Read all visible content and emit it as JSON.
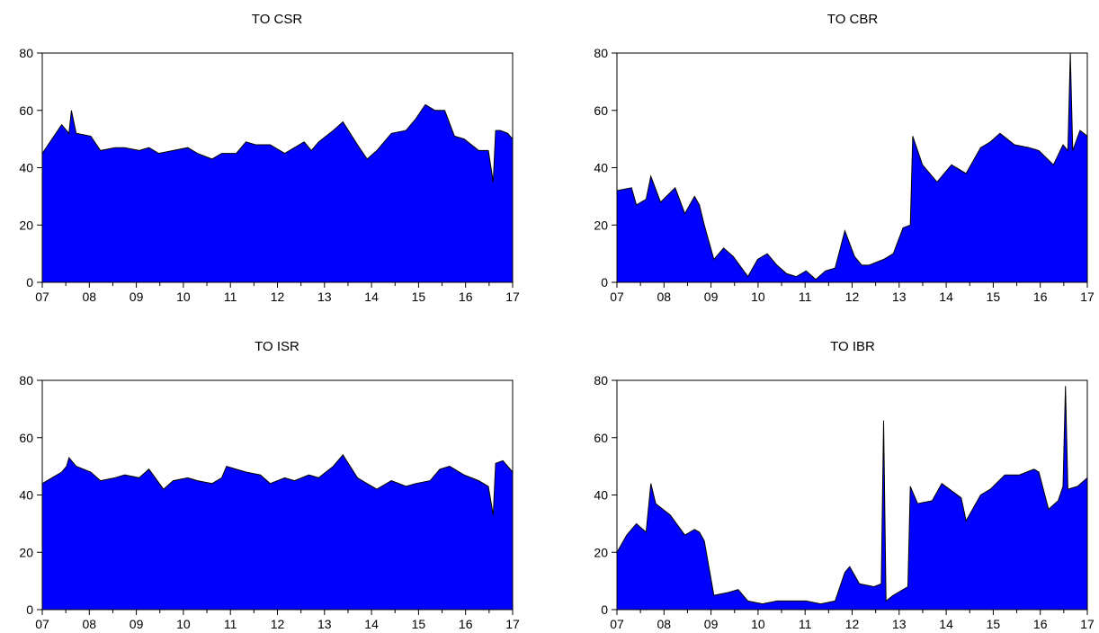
{
  "chart_data": [
    {
      "type": "area",
      "title": "TO CSR",
      "fill_color": "#0000ff",
      "line_color": "#000000",
      "ylim": [
        0,
        80
      ],
      "y_ticks": [
        "0",
        "20",
        "40",
        "60",
        "80"
      ],
      "xlim": [
        2007.3,
        2017.0
      ],
      "x_ticks": [
        2007,
        2008,
        2009,
        2010,
        2011,
        2012,
        2013,
        2014,
        2015,
        2016,
        2017
      ],
      "x_tick_labels": [
        "07",
        "08",
        "09",
        "10",
        "11",
        "12",
        "13",
        "14",
        "15",
        "16",
        "17"
      ],
      "x": [
        2007.3,
        2007.5,
        2007.7,
        2007.85,
        2007.9,
        2008.0,
        2008.3,
        2008.5,
        2008.8,
        2009.0,
        2009.3,
        2009.5,
        2009.7,
        2010.0,
        2010.3,
        2010.5,
        2010.8,
        2011.0,
        2011.3,
        2011.5,
        2011.7,
        2012.0,
        2012.3,
        2012.5,
        2012.7,
        2012.85,
        2013.0,
        2013.3,
        2013.5,
        2013.8,
        2014.0,
        2014.2,
        2014.5,
        2014.8,
        2015.0,
        2015.2,
        2015.4,
        2015.6,
        2015.8,
        2016.0,
        2016.3,
        2016.5,
        2016.6,
        2016.65,
        2016.75,
        2016.9,
        2017.0
      ],
      "values": [
        45,
        50,
        55,
        52,
        60,
        52,
        51,
        46,
        47,
        47,
        46,
        47,
        45,
        46,
        47,
        45,
        43,
        45,
        45,
        49,
        48,
        48,
        45,
        47,
        49,
        46,
        49,
        53,
        56,
        48,
        43,
        46,
        52,
        53,
        57,
        62,
        60,
        60,
        51,
        50,
        46,
        46,
        35,
        53,
        53,
        52,
        50
      ]
    },
    {
      "type": "area",
      "title": "TO CBR",
      "fill_color": "#0000ff",
      "line_color": "#000000",
      "ylim": [
        0,
        80
      ],
      "y_ticks": [
        "0",
        "20",
        "40",
        "60",
        "80"
      ],
      "xlim": [
        2007.3,
        2017.0
      ],
      "x_ticks": [
        2007,
        2008,
        2009,
        2010,
        2011,
        2012,
        2013,
        2014,
        2015,
        2016,
        2017
      ],
      "x_tick_labels": [
        "07",
        "08",
        "09",
        "10",
        "11",
        "12",
        "13",
        "14",
        "15",
        "16",
        "17"
      ],
      "x": [
        2007.3,
        2007.6,
        2007.7,
        2007.9,
        2008.0,
        2008.2,
        2008.5,
        2008.7,
        2008.9,
        2009.0,
        2009.1,
        2009.3,
        2009.5,
        2009.7,
        2010.0,
        2010.2,
        2010.4,
        2010.6,
        2010.8,
        2011.0,
        2011.2,
        2011.4,
        2011.6,
        2011.8,
        2012.0,
        2012.2,
        2012.35,
        2012.5,
        2012.8,
        2013.0,
        2013.2,
        2013.35,
        2013.4,
        2013.6,
        2013.9,
        2014.2,
        2014.5,
        2014.8,
        2015.0,
        2015.2,
        2015.5,
        2015.8,
        2016.0,
        2016.3,
        2016.5,
        2016.6,
        2016.65,
        2016.7,
        2016.85,
        2017.0
      ],
      "values": [
        32,
        33,
        27,
        29,
        37,
        28,
        33,
        24,
        30,
        27,
        20,
        8,
        12,
        9,
        2,
        8,
        10,
        6,
        3,
        2,
        4,
        1,
        4,
        5,
        18,
        9,
        6,
        6,
        8,
        10,
        19,
        20,
        51,
        41,
        35,
        41,
        38,
        47,
        49,
        52,
        48,
        47,
        46,
        41,
        48,
        46,
        80,
        46,
        53,
        51
      ]
    },
    {
      "type": "area",
      "title": "TO ISR",
      "fill_color": "#0000ff",
      "line_color": "#000000",
      "ylim": [
        0,
        80
      ],
      "y_ticks": [
        "0",
        "20",
        "40",
        "60",
        "80"
      ],
      "xlim": [
        2007.3,
        2017.0
      ],
      "x_ticks": [
        2007,
        2008,
        2009,
        2010,
        2011,
        2012,
        2013,
        2014,
        2015,
        2016,
        2017
      ],
      "x_tick_labels": [
        "07",
        "08",
        "09",
        "10",
        "11",
        "12",
        "13",
        "14",
        "15",
        "16",
        "17"
      ],
      "x": [
        2007.3,
        2007.5,
        2007.7,
        2007.8,
        2007.85,
        2008.0,
        2008.3,
        2008.5,
        2008.8,
        2009.0,
        2009.3,
        2009.5,
        2009.8,
        2010.0,
        2010.3,
        2010.5,
        2010.8,
        2011.0,
        2011.1,
        2011.5,
        2011.8,
        2012.0,
        2012.3,
        2012.5,
        2012.8,
        2013.0,
        2013.3,
        2013.5,
        2013.8,
        2014.0,
        2014.2,
        2014.5,
        2014.8,
        2015.0,
        2015.3,
        2015.5,
        2015.7,
        2016.0,
        2016.3,
        2016.5,
        2016.6,
        2016.65,
        2016.8,
        2017.0
      ],
      "values": [
        44,
        46,
        48,
        50,
        53,
        50,
        48,
        45,
        46,
        47,
        46,
        49,
        42,
        45,
        46,
        45,
        44,
        46,
        50,
        48,
        47,
        44,
        46,
        45,
        47,
        46,
        50,
        54,
        46,
        44,
        42,
        45,
        43,
        44,
        45,
        49,
        50,
        47,
        45,
        43,
        33,
        51,
        52,
        48
      ]
    },
    {
      "type": "area",
      "title": "TO IBR",
      "fill_color": "#0000ff",
      "line_color": "#000000",
      "ylim": [
        0,
        80
      ],
      "y_ticks": [
        "0",
        "20",
        "40",
        "60",
        "80"
      ],
      "xlim": [
        2007.3,
        2017.0
      ],
      "x_ticks": [
        2007,
        2008,
        2009,
        2010,
        2011,
        2012,
        2013,
        2014,
        2015,
        2016,
        2017
      ],
      "x_tick_labels": [
        "07",
        "08",
        "09",
        "10",
        "11",
        "12",
        "13",
        "14",
        "15",
        "16",
        "17"
      ],
      "x": [
        2007.3,
        2007.5,
        2007.7,
        2007.9,
        2008.0,
        2008.1,
        2008.4,
        2008.7,
        2008.9,
        2009.0,
        2009.1,
        2009.3,
        2009.6,
        2009.8,
        2010.0,
        2010.3,
        2010.6,
        2010.9,
        2011.2,
        2011.5,
        2011.8,
        2012.0,
        2012.1,
        2012.3,
        2012.6,
        2012.75,
        2012.8,
        2012.85,
        2013.0,
        2013.3,
        2013.35,
        2013.5,
        2013.8,
        2014.0,
        2014.4,
        2014.5,
        2014.8,
        2015.0,
        2015.3,
        2015.6,
        2015.9,
        2016.0,
        2016.2,
        2016.4,
        2016.5,
        2016.55,
        2016.6,
        2016.8,
        2017.0
      ],
      "values": [
        20,
        26,
        30,
        27,
        44,
        37,
        33,
        26,
        28,
        27,
        24,
        5,
        6,
        7,
        3,
        2,
        3,
        3,
        3,
        2,
        3,
        13,
        15,
        9,
        8,
        9,
        66,
        3,
        5,
        8,
        43,
        37,
        38,
        44,
        39,
        31,
        40,
        42,
        47,
        47,
        49,
        48,
        35,
        38,
        43,
        78,
        42,
        43,
        46
      ]
    }
  ]
}
